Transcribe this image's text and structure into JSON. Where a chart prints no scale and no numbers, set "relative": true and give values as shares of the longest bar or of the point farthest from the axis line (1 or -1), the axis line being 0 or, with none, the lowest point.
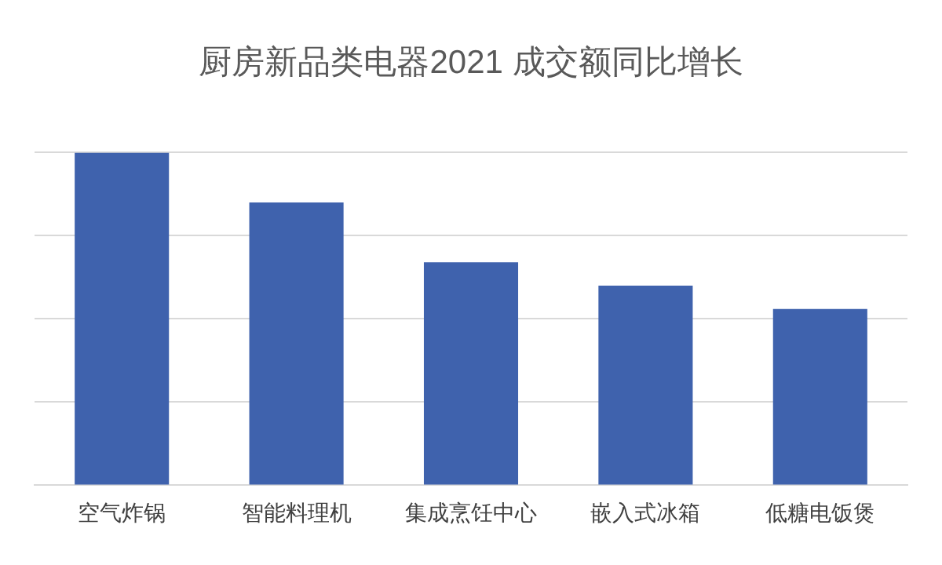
{
  "chart_data": {
    "type": "bar",
    "title": "厨房新品类电器2021 成交额同比增长",
    "categories": [
      "空气炸锅",
      "智能料理机",
      "集成烹饪中心",
      "嵌入式冰箱",
      "低糖电饭煲"
    ],
    "values": [
      1,
      0.85,
      0.67,
      0.6,
      0.53
    ],
    "color": "#3f62ad",
    "relative": true,
    "grid": true,
    "legend": false
  }
}
